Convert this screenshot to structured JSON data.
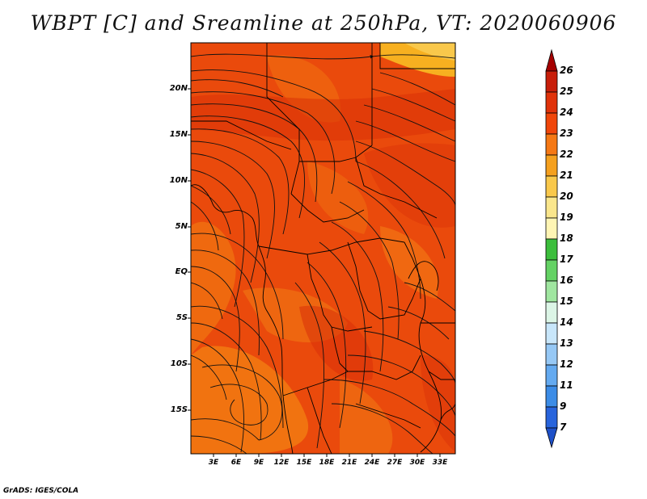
{
  "title": "WBPT [C] and Sreamline at 250hPa, VT: 2020060906",
  "credit": "GrADS: IGES/COLA",
  "lat_labels": [
    "20N",
    "15N",
    "10N",
    "5N",
    "EQ",
    "5S",
    "10S",
    "15S"
  ],
  "lon_labels": [
    "3E",
    "6E",
    "9E",
    "12E",
    "15E",
    "18E",
    "21E",
    "24E",
    "27E",
    "30E",
    "33E"
  ],
  "colorbar": {
    "labels": [
      "26",
      "25",
      "24",
      "23",
      "22",
      "21",
      "20",
      "19",
      "18",
      "17",
      "16",
      "15",
      "14",
      "13",
      "12",
      "11",
      "9",
      "7"
    ],
    "colors": [
      "#a50000",
      "#c81e0a",
      "#e0320a",
      "#f0460a",
      "#f57814",
      "#f5a01e",
      "#f9c84b",
      "#fae68c",
      "#fff5b4",
      "#3cbe3c",
      "#64d264",
      "#a0e6a0",
      "#dcf5e6",
      "#c8e6fa",
      "#96c8f5",
      "#64aaf0",
      "#3c8ce6",
      "#2864dc",
      "#1e50c8"
    ]
  },
  "map": {
    "field_palette": {
      "base": "#ea4a0c",
      "hot": "#d93208",
      "cool": "#f27810",
      "warm_yellow": "#f7b020"
    },
    "streamline_color": "#111111",
    "boundary_color": "#000000"
  }
}
